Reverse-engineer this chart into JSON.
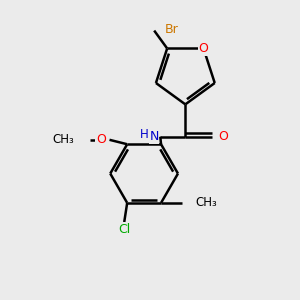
{
  "bg_color": "#ebebeb",
  "bond_color": "#000000",
  "O_color": "#ff0000",
  "N_color": "#0000cc",
  "Br_color": "#cc7700",
  "Cl_color": "#00aa00",
  "line_width": 1.8,
  "fig_size": [
    3.0,
    3.0
  ],
  "dpi": 100,
  "xlim": [
    0,
    10
  ],
  "ylim": [
    0,
    10
  ]
}
